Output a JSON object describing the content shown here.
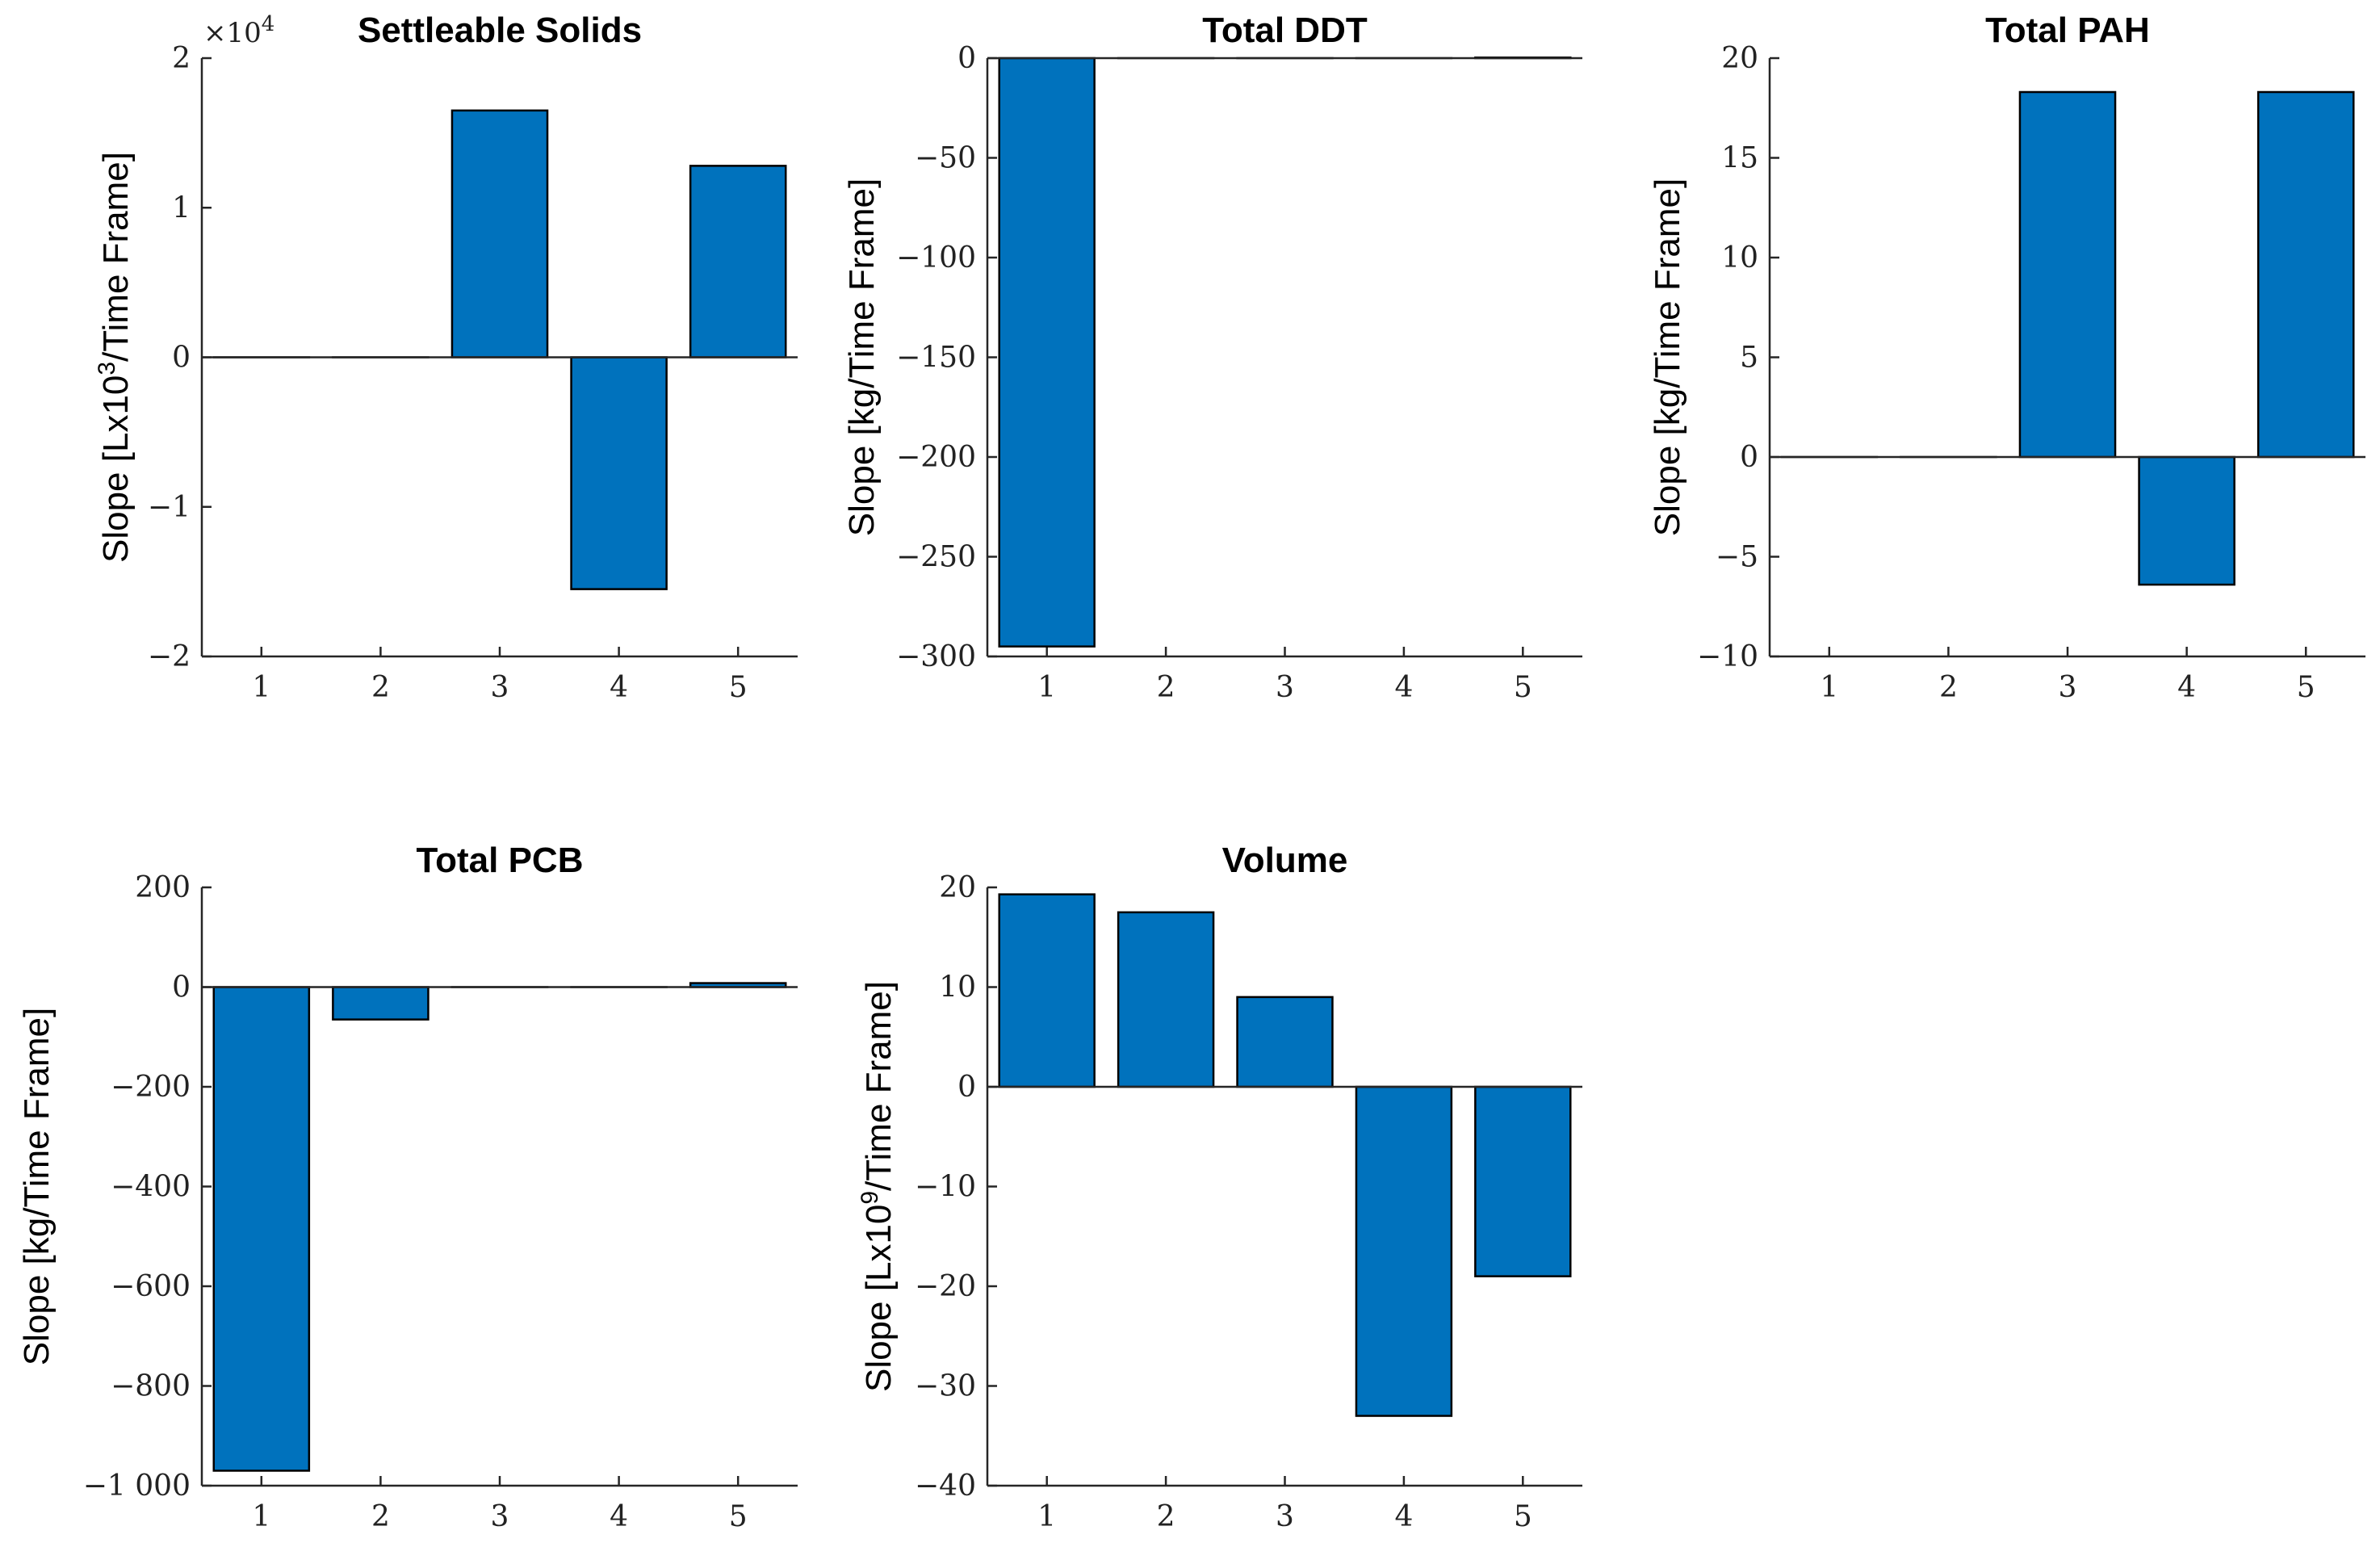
{
  "chart_data": [
    {
      "type": "bar",
      "title": "Settleable Solids",
      "ylabel": "Slope [Lx10^3/Time Frame]",
      "ylabel_main": "Slope [Lx10",
      "ylabel_sup": "3",
      "ylabel_end": "/Time Frame]",
      "categories": [
        "1",
        "2",
        "3",
        "4",
        "5"
      ],
      "values": [
        0,
        0,
        16500,
        -15500,
        12800
      ],
      "ylim": [
        -20000,
        20000
      ],
      "yticks": [
        -20000,
        -10000,
        0,
        10000,
        20000
      ],
      "ytick_labels": [
        "−2",
        "−1",
        "0",
        "1",
        "2"
      ],
      "multiplier": "×10",
      "multiplier_exp": "4",
      "bar_color": "#0072BD"
    },
    {
      "type": "bar",
      "title": "Total DDT",
      "ylabel": "Slope [kg/Time Frame]",
      "categories": [
        "1",
        "2",
        "3",
        "4",
        "5"
      ],
      "values": [
        -295,
        0,
        0,
        0,
        0.3
      ],
      "ylim": [
        -300,
        0
      ],
      "yticks": [
        -300,
        -250,
        -200,
        -150,
        -100,
        -50,
        0
      ],
      "ytick_labels": [
        "−300",
        "−250",
        "−200",
        "−150",
        "−100",
        "−50",
        "0"
      ],
      "bar_color": "#0072BD"
    },
    {
      "type": "bar",
      "title": "Total PAH",
      "ylabel": "Slope [kg/Time Frame]",
      "categories": [
        "1",
        "2",
        "3",
        "4",
        "5"
      ],
      "values": [
        0,
        0,
        18.3,
        -6.4,
        18.3
      ],
      "ylim": [
        -10,
        20
      ],
      "yticks": [
        -10,
        -5,
        0,
        5,
        10,
        15,
        20
      ],
      "ytick_labels": [
        "−10",
        "−5",
        "0",
        "5",
        "10",
        "15",
        "20"
      ],
      "bar_color": "#0072BD"
    },
    {
      "type": "bar",
      "title": "Total PCB",
      "ylabel": "Slope [kg/Time Frame]",
      "categories": [
        "1",
        "2",
        "3",
        "4",
        "5"
      ],
      "values": [
        -970,
        -65,
        0,
        0,
        8
      ],
      "ylim": [
        -1000,
        200
      ],
      "yticks": [
        -1000,
        -800,
        -600,
        -400,
        -200,
        0,
        200
      ],
      "ytick_labels": [
        "−1 000",
        "−800",
        "−600",
        "−400",
        "−200",
        "0",
        "200"
      ],
      "bar_color": "#0072BD"
    },
    {
      "type": "bar",
      "title": "Volume",
      "ylabel": "Slope [Lx10^9/Time Frame]",
      "ylabel_main": "Slope [Lx10",
      "ylabel_sup": "9",
      "ylabel_end": "/Time Frame]",
      "categories": [
        "1",
        "2",
        "3",
        "4",
        "5"
      ],
      "values": [
        19.3,
        17.5,
        9,
        -33,
        -19
      ],
      "ylim": [
        -40,
        20
      ],
      "yticks": [
        -40,
        -30,
        -20,
        -10,
        0,
        10,
        20
      ],
      "ytick_labels": [
        "−40",
        "−30",
        "−20",
        "−10",
        "0",
        "10",
        "20"
      ],
      "bar_color": "#0072BD"
    }
  ]
}
